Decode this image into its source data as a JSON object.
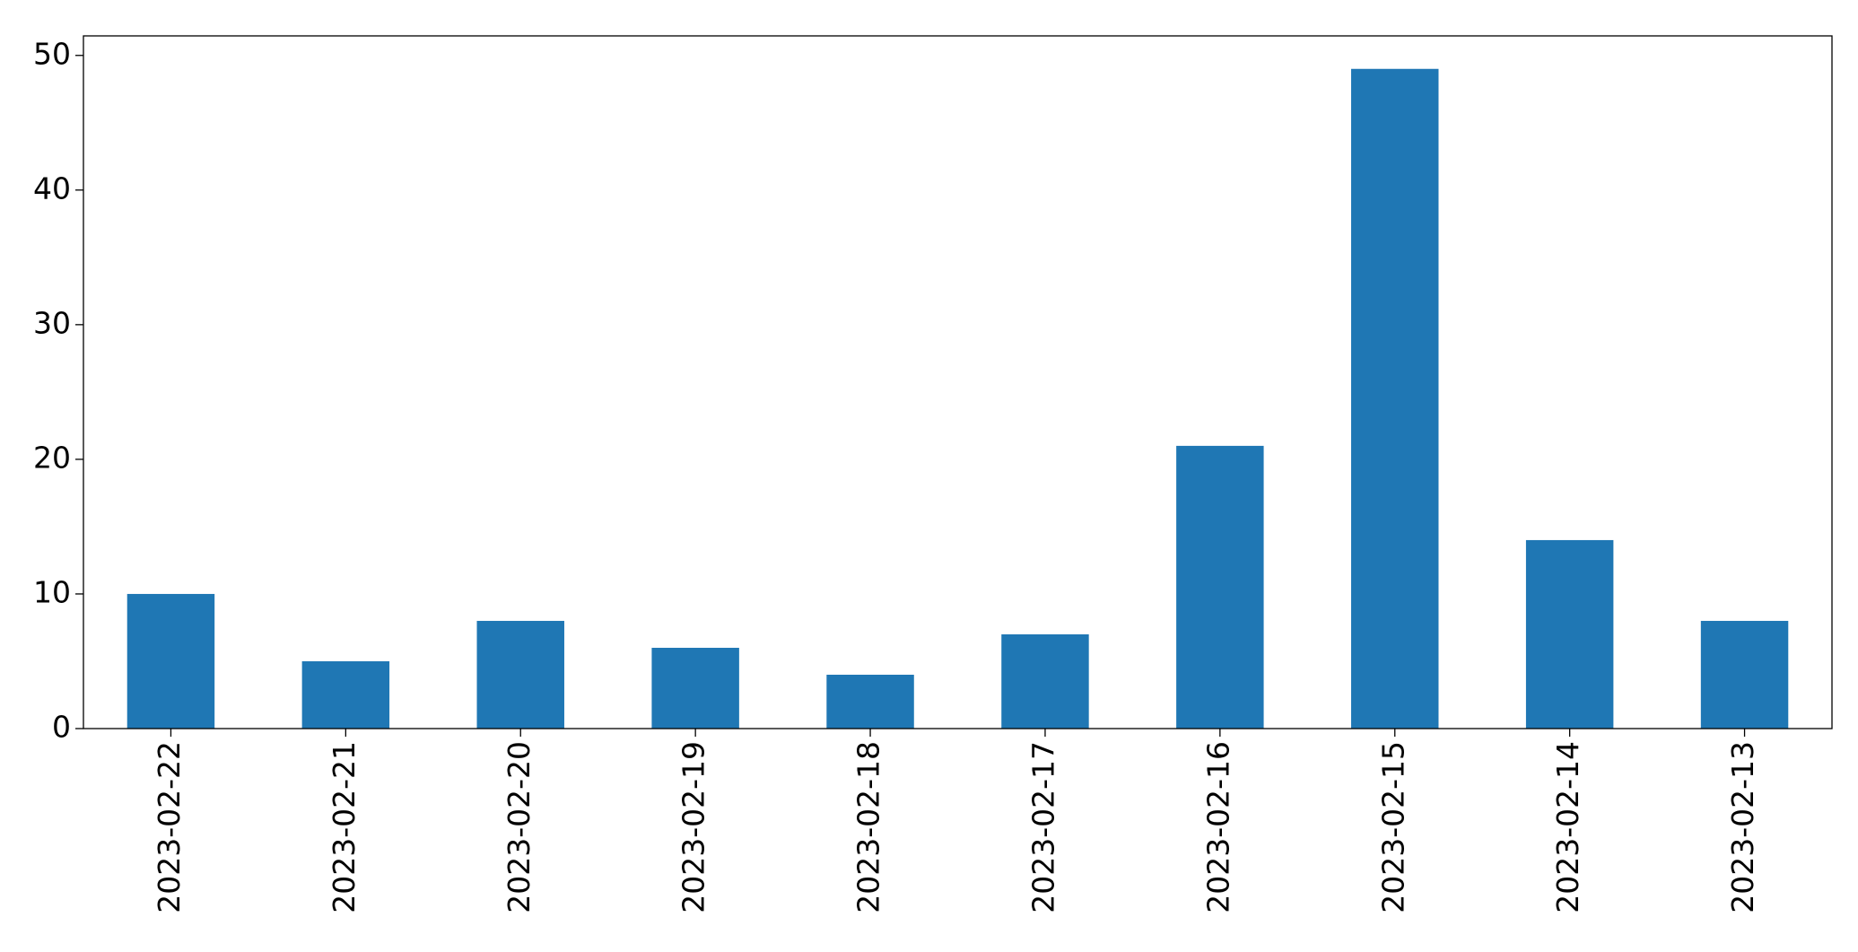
{
  "chart_data": {
    "type": "bar",
    "categories": [
      "2023-02-22",
      "2023-02-21",
      "2023-02-20",
      "2023-02-19",
      "2023-02-18",
      "2023-02-17",
      "2023-02-16",
      "2023-02-15",
      "2023-02-14",
      "2023-02-13"
    ],
    "values": [
      10,
      5,
      8,
      6,
      4,
      7,
      21,
      49,
      14,
      8
    ],
    "color": "#1f77b4",
    "ylim": [
      0,
      51.45
    ],
    "yticks": [
      0,
      10,
      20,
      30,
      40,
      50
    ],
    "grid": false
  }
}
